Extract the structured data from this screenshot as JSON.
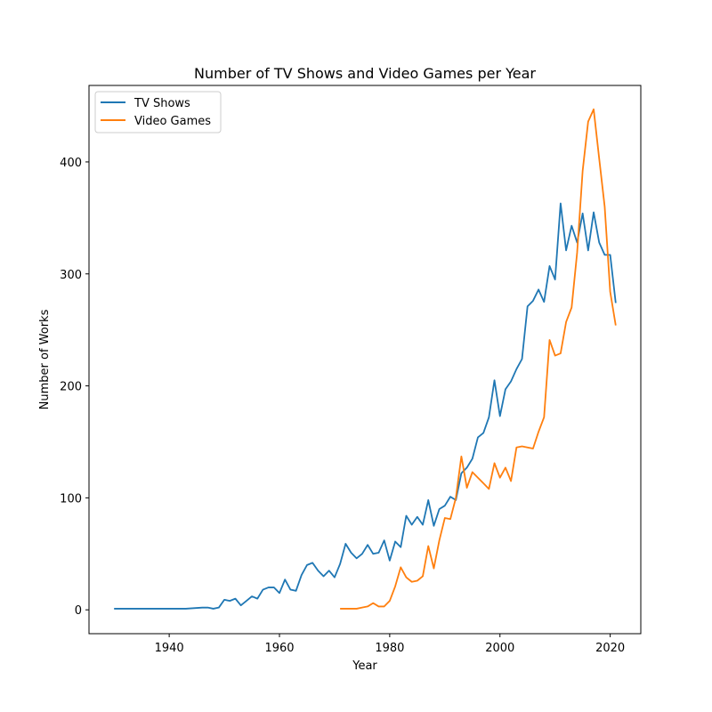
{
  "chart_data": {
    "type": "line",
    "title": "Number of TV Shows and Video Games per Year",
    "xlabel": "Year",
    "ylabel": "Number of Works",
    "xlim": [
      1925.45,
      2025.55
    ],
    "ylim": [
      -21.3,
      468.3
    ],
    "xticks": [
      1940,
      1960,
      1980,
      2000,
      2020
    ],
    "yticks": [
      0,
      100,
      200,
      300,
      400
    ],
    "grid": false,
    "legend_position": "upper-left",
    "series": [
      {
        "name": "TV Shows",
        "color": "#1f77b4",
        "x": [
          1930,
          1943,
          1946,
          1947,
          1948,
          1949,
          1950,
          1951,
          1952,
          1953,
          1954,
          1955,
          1956,
          1957,
          1958,
          1959,
          1960,
          1961,
          1962,
          1963,
          1964,
          1965,
          1966,
          1967,
          1968,
          1969,
          1970,
          1971,
          1972,
          1973,
          1974,
          1975,
          1976,
          1977,
          1978,
          1979,
          1980,
          1981,
          1982,
          1983,
          1984,
          1985,
          1986,
          1987,
          1988,
          1989,
          1990,
          1991,
          1992,
          1993,
          1994,
          1995,
          1996,
          1997,
          1998,
          1999,
          2000,
          2001,
          2002,
          2003,
          2004,
          2005,
          2006,
          2007,
          2008,
          2009,
          2010,
          2011,
          2012,
          2013,
          2014,
          2015,
          2016,
          2017,
          2018,
          2019,
          2020,
          2021
        ],
        "y": [
          1,
          1,
          2,
          2,
          1,
          2,
          9,
          8,
          10,
          4,
          8,
          12,
          10,
          18,
          20,
          20,
          15,
          27,
          18,
          17,
          31,
          40,
          42,
          35,
          30,
          35,
          29,
          41,
          59,
          51,
          46,
          50,
          58,
          50,
          51,
          62,
          44,
          61,
          56,
          84,
          76,
          83,
          76,
          98,
          75,
          90,
          93,
          101,
          98,
          122,
          127,
          135,
          154,
          158,
          172,
          205,
          173,
          197,
          204,
          215,
          224,
          271,
          276,
          286,
          275,
          307,
          295,
          363,
          321,
          343,
          328,
          354,
          321,
          355,
          328,
          317,
          317,
          274
        ]
      },
      {
        "name": "Video Games",
        "color": "#ff7f0e",
        "x": [
          1971,
          1972,
          1973,
          1974,
          1975,
          1976,
          1977,
          1978,
          1979,
          1980,
          1981,
          1982,
          1983,
          1984,
          1985,
          1986,
          1987,
          1988,
          1989,
          1990,
          1991,
          1992,
          1993,
          1994,
          1995,
          1996,
          1997,
          1998,
          1999,
          2000,
          2001,
          2002,
          2003,
          2004,
          2005,
          2006,
          2007,
          2008,
          2009,
          2010,
          2011,
          2012,
          2013,
          2014,
          2015,
          2016,
          2017,
          2018,
          2019,
          2020,
          2021
        ],
        "y": [
          1,
          1,
          1,
          1,
          2,
          3,
          6,
          3,
          3,
          8,
          21,
          38,
          29,
          25,
          26,
          30,
          57,
          37,
          62,
          82,
          81,
          100,
          137,
          109,
          123,
          118,
          113,
          108,
          131,
          118,
          127,
          115,
          145,
          146,
          145,
          144,
          159,
          172,
          241,
          227,
          229,
          257,
          270,
          319,
          392,
          436,
          447,
          403,
          360,
          284,
          254
        ]
      }
    ]
  }
}
